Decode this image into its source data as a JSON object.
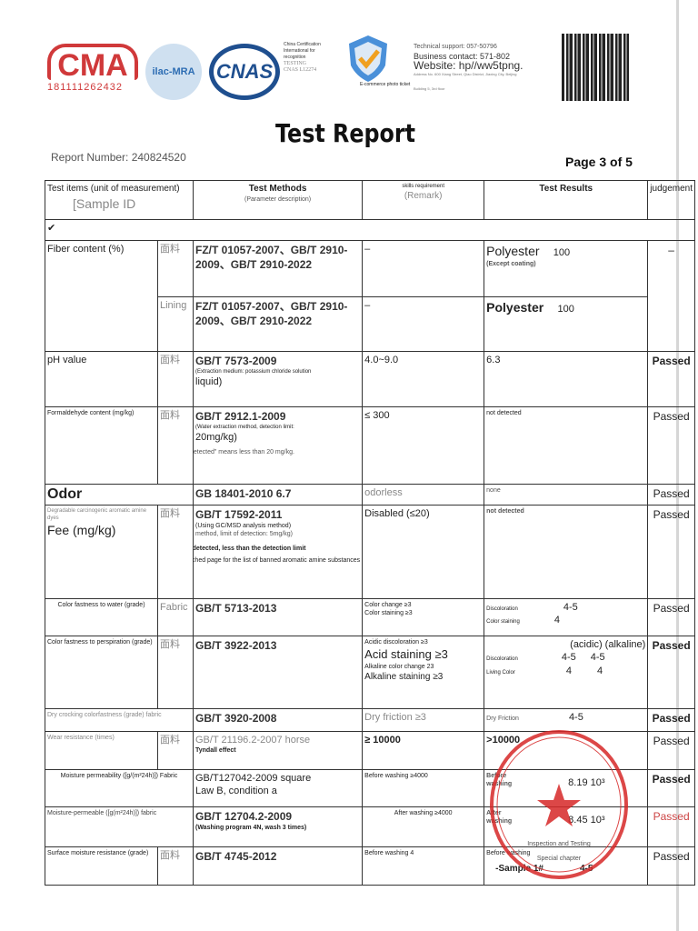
{
  "header": {
    "cma_logo": "CMA",
    "cma_number": "181111262432",
    "ilac_logo": "ilac-MRA",
    "cnas_logo": "CNAS",
    "cert_lines": [
      "China Certification",
      "International for",
      "recognition",
      "TESTING",
      "CNAS L12274"
    ],
    "ecommerce_label": "E-commerce photo ticket",
    "tech_support": "Technical support: 057-50796",
    "business_contact": "Business contact: 571-802",
    "website": "Website: hp//ww5tpng.",
    "address": "Address No. 600 Xiang Street, Qiao District, Jiaxing City, Beijing",
    "building": "Building 5, 3rd floor"
  },
  "title": "Test Report",
  "report_number": "Report Number: 240824520",
  "page": "Page 3 of 5",
  "table_header": {
    "items": "Test items (unit of measurement)",
    "sample_id": "[Sample ID",
    "methods": "Test Methods",
    "param": "(Parameter description)",
    "requirement": "skills requirement",
    "remark": "(Remark)",
    "results": "Test Results",
    "judgement": "judgement",
    "check": "✔"
  },
  "rows": {
    "fiber": {
      "item": "Fiber content (%)",
      "sub1": "面料",
      "method1": "FZ/T 01057-2007、GB/T 2910-2009、GB/T 2910-2022",
      "req1": "–",
      "result1": "Polyester",
      "value1": "100",
      "note1": "(Except coating)",
      "sub2": "Lining",
      "method2": "FZ/T 01057-2007、GB/T 2910-2009、GB/T 2910-2022",
      "req2": "–",
      "result2": "Polyester",
      "value2": "100",
      "judgement": "–"
    },
    "ph": {
      "item": "pH value",
      "sub": "面料",
      "method": "GB/T 7573-2009",
      "param": "(Extraction medium: potassium chloride solution",
      "param2": "liquid)",
      "req": "4.0~9.0",
      "result": "6.3",
      "judgement": "Passed"
    },
    "formaldehyde": {
      "item": "Formaldehyde content (mg/kg)",
      "sub": "面料",
      "method": "GB/T 2912.1-2009",
      "param": "(Water extraction method, detection limit:",
      "param2": "20mg/kg)",
      "req": "≤ 300",
      "result": "not detected",
      "note": "Note: \"Not detected\" means less than 20 mg/kg.",
      "judgement": "Passed"
    },
    "odor": {
      "item": "Odor",
      "method": "GB 18401-2010 6.7",
      "req": "odorless",
      "result": "none",
      "judgement": "Passed"
    },
    "amine": {
      "item_small": "Degradable carcinogenic aromatic amine dyes",
      "item": "Fee (mg/kg)",
      "sub": "面料",
      "method": "GB/T 17592-2011",
      "param": "(Using GC/MSD analysis method)",
      "param2": "method, limit of detection: 5mg/kg)",
      "req": "Disabled (≤20)",
      "result": "not detected",
      "note1": "Note: 1) Not detected, less than the detection limit",
      "note2": "2) See the attached page for the list of banned aromatic amine substances",
      "judgement": "Passed"
    },
    "water": {
      "item": "Color fastness to water (grade)",
      "sub": "Fabric",
      "method": "GB/T 5713-2013",
      "req1": "Color change ≥3",
      "req2": "Color staining ≥3",
      "lab1": "Discoloration",
      "lab2": "Color staining",
      "v1": "4-5",
      "v2": "4",
      "judgement": "Passed"
    },
    "perspiration": {
      "item": "Color fastness to perspiration (grade)",
      "sub": "面料",
      "method": "GB/T 3922-2013",
      "req1": "Acidic discoloration ≥3",
      "req2": "Acid staining ≥3",
      "req3": "Alkaline color change 23",
      "req4": "Alkaline staining ≥3",
      "head": "(acidic) (alkaline)",
      "lab1": "Discoloration",
      "lab2": "Living Color",
      "v1a": "4-5",
      "v1b": "4-5",
      "v2a": "4",
      "v2b": "4",
      "judgement": "Passed"
    },
    "dry": {
      "item": "Dry crocking colorfastness (grade) fabric",
      "method": "GB/T 3920-2008",
      "req": "Dry friction ≥3",
      "lab": "Dry Friction",
      "value": "4-5",
      "judgement": "Passed"
    },
    "wear": {
      "item": "Wear resistance (times)",
      "sub": "面料",
      "method": "GB/T 21196.2-2007 horse",
      "param": "Tyndall effect",
      "req": "≥ 10000",
      "result": ">10000",
      "judgement": "Passed"
    },
    "moisture1": {
      "item": "Moisture permeability ([g/(m²24h)]) Fabric",
      "method": "GB/T127042-2009 square",
      "param": "Law B, condition a",
      "req": "Before washing ≥4000",
      "lab": "Before washing",
      "value": "8.19 10³",
      "judgement": "Passed"
    },
    "moisture2": {
      "item": "Moisture-permeable ([g(m²24h)]) fabric",
      "method": "GB/T 12704.2-2009",
      "param": "(Washing program 4N, wash 3 times)",
      "req": "After washing ≥4000",
      "lab": "After washing",
      "value": "8.45 10³",
      "judgement": "Passed"
    },
    "surface": {
      "item": "Surface moisture resistance (grade)",
      "sub": "面料",
      "method": "GB/T 4745-2012",
      "req": "Before washing 4",
      "lab": "Before washing",
      "lab2": "-Sample 1#",
      "value": "4-5",
      "judgement": "Passed"
    }
  },
  "stamp": {
    "text": "浙江电商检测有限公司",
    "sub1": "Inspection and Testing",
    "sub2": "Special chapter",
    "color": "#d62828"
  }
}
